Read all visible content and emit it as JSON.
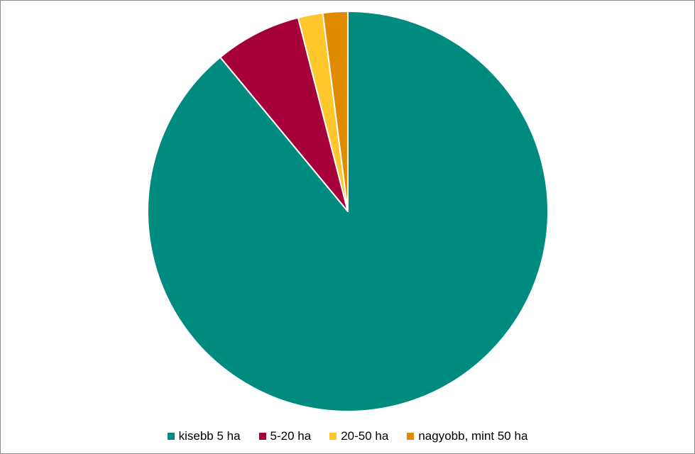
{
  "chart_data": {
    "type": "pie",
    "title": "",
    "start_angle_deg": 0,
    "direction": "clockwise",
    "legend_position": "bottom",
    "slices": [
      {
        "label": "kisebb 5 ha",
        "value": 89.0,
        "color": "#008B80"
      },
      {
        "label": "5-20 ha",
        "value": 7.0,
        "color": "#A5003A"
      },
      {
        "label": "20-50 ha",
        "value": 2.0,
        "color": "#FFC72C"
      },
      {
        "label": "nagyobb, mint 50 ha",
        "value": 2.0,
        "color": "#E08A00"
      }
    ]
  }
}
